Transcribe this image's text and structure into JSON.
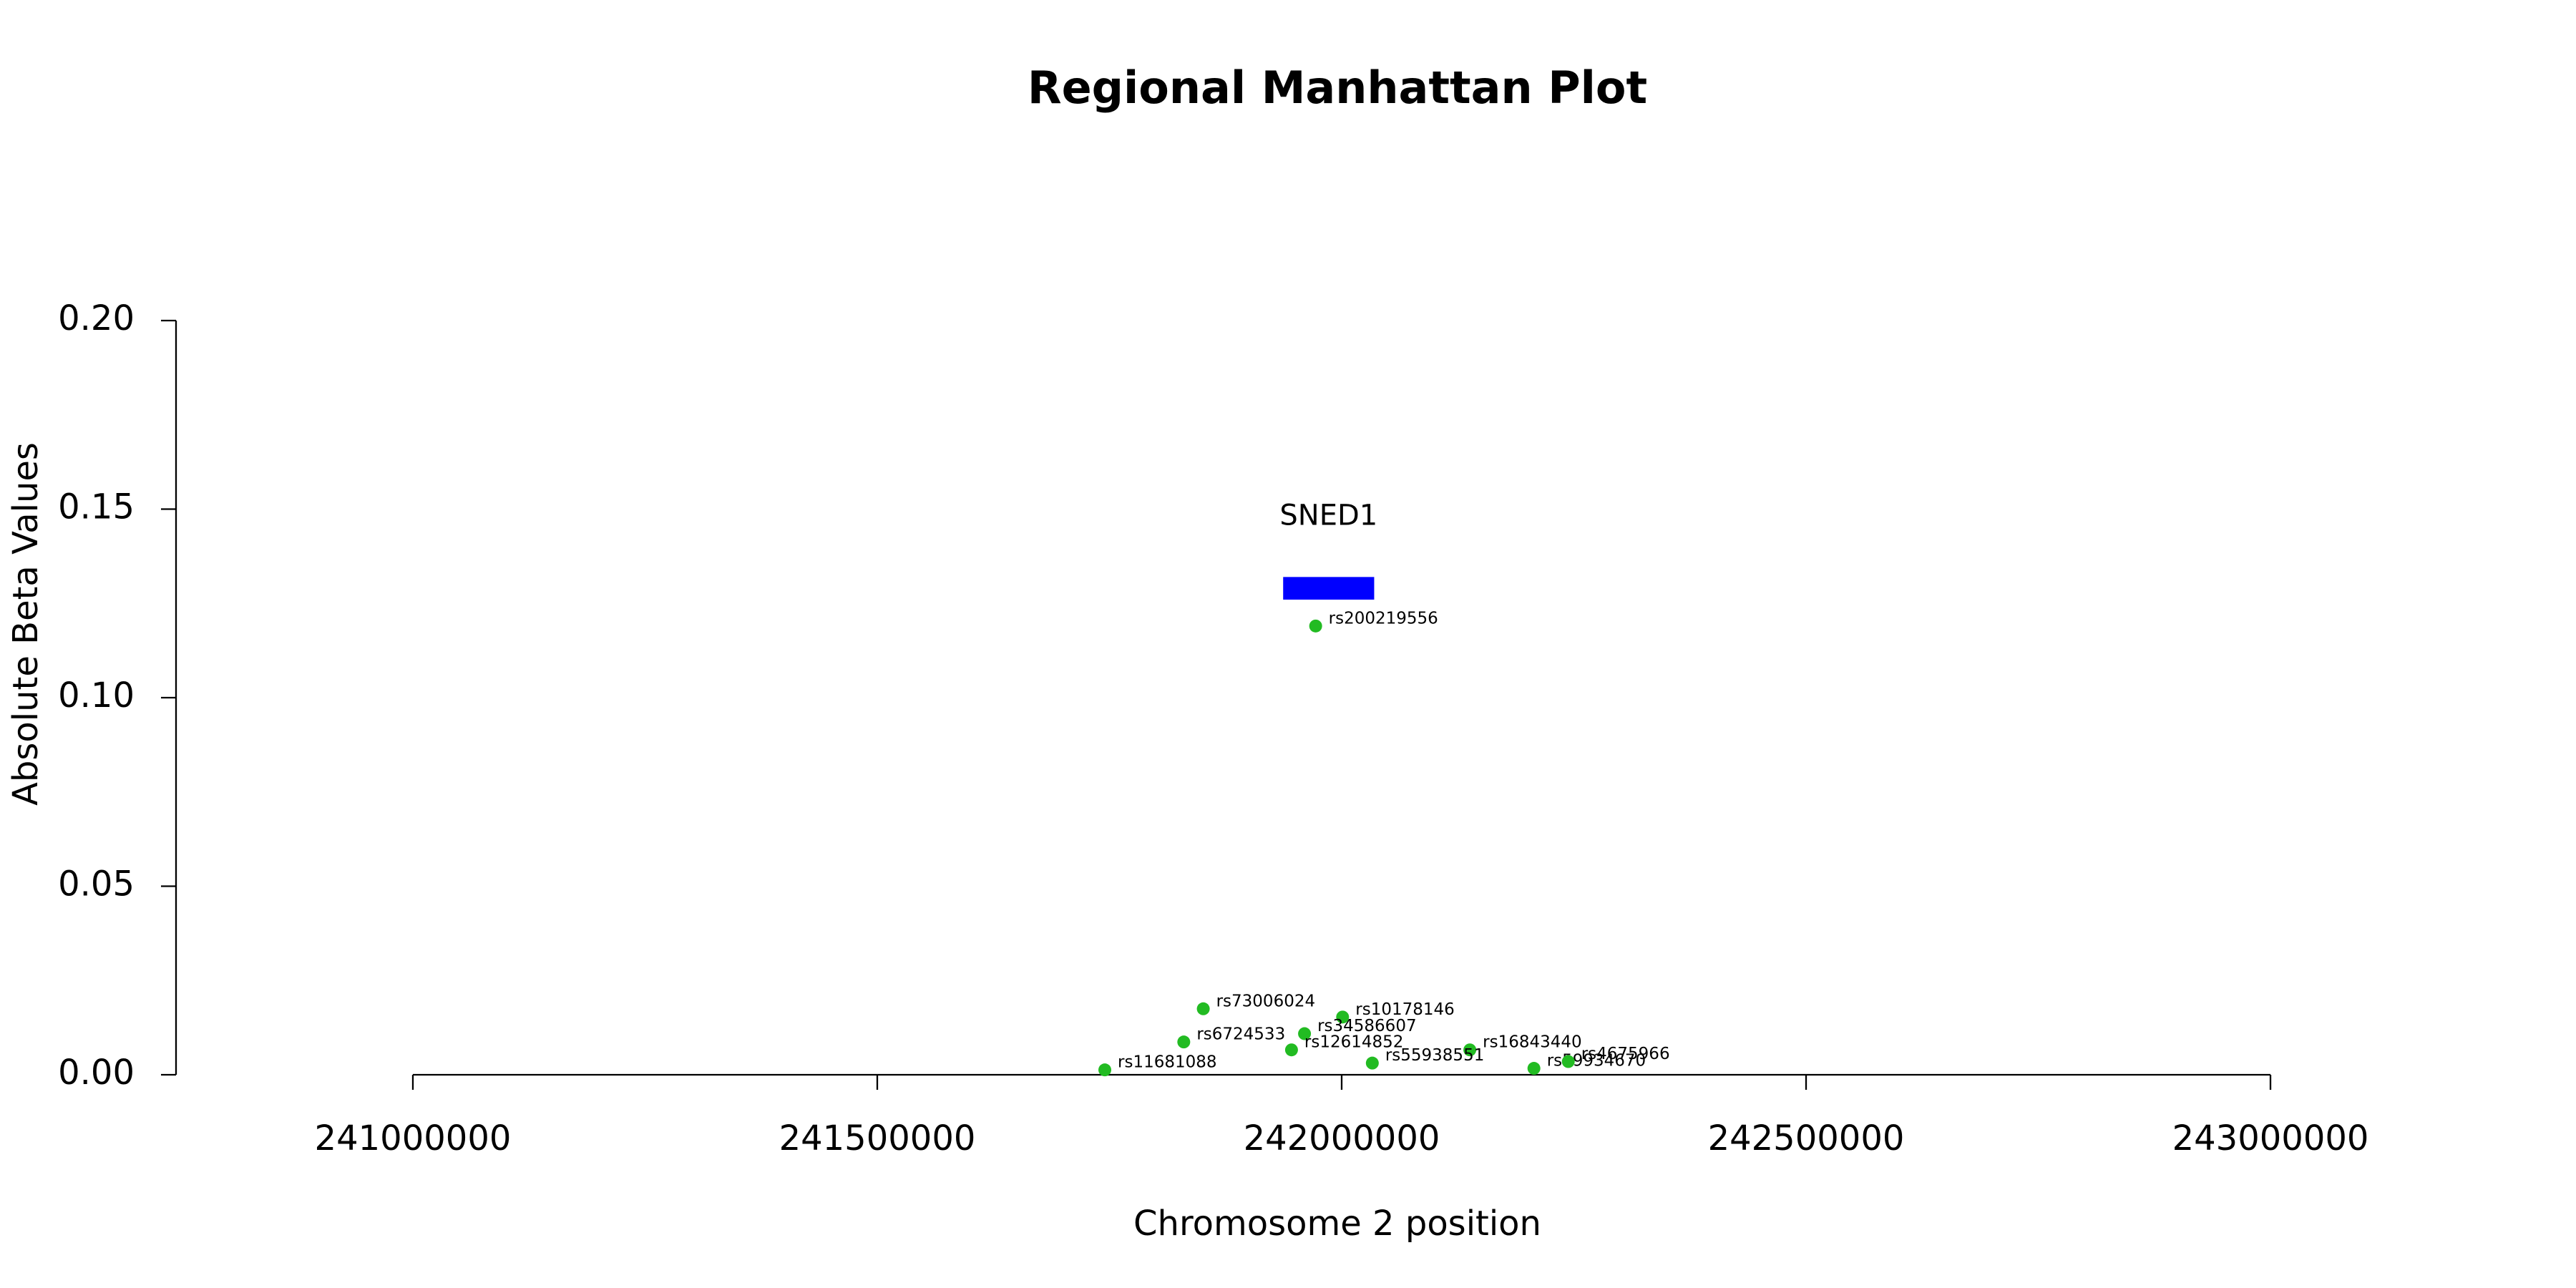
{
  "chart_data": {
    "type": "scatter",
    "title": "Regional Manhattan Plot",
    "x_label": "Chromosome 2 position",
    "y_label": "Absolute Beta Values",
    "xlim": [
      240745000,
      243255000
    ],
    "ylim": [
      0,
      0.2
    ],
    "xticks": [
      241000000,
      241500000,
      242000000,
      242500000,
      243000000
    ],
    "yticks": [
      {
        "value": 0,
        "label": "0.00"
      },
      0.05,
      {
        "value": 0.1,
        "label": "0.10"
      },
      0.15,
      {
        "value": 0.2,
        "label": "0.20"
      }
    ],
    "series": [
      {
        "color": "#22bb22",
        "labels": [
          "rs200219556",
          "rs73006024",
          "rs10178146",
          "rs34586607",
          "rs6724533",
          "rs12614852",
          "rs16843440",
          "rs11681088",
          "rs55938551",
          "rs59934670",
          "rs4675966"
        ],
        "x": [
          241972000,
          241851000,
          242001000,
          241960000,
          241830000,
          241946000,
          242138000,
          241745000,
          242033000,
          242207000,
          242244000
        ],
        "values": [
          0.119,
          0.0175,
          0.0153,
          0.0109,
          0.0087,
          0.0066,
          0.0066,
          0.0013,
          0.0031,
          0.0017,
          0.0035
        ]
      }
    ],
    "genes": [
      {
        "name": "SNED1",
        "start": 241937000,
        "end": 242035000,
        "ymin": 0.126,
        "ymax": 0.132,
        "color": "#0000ff"
      }
    ]
  }
}
